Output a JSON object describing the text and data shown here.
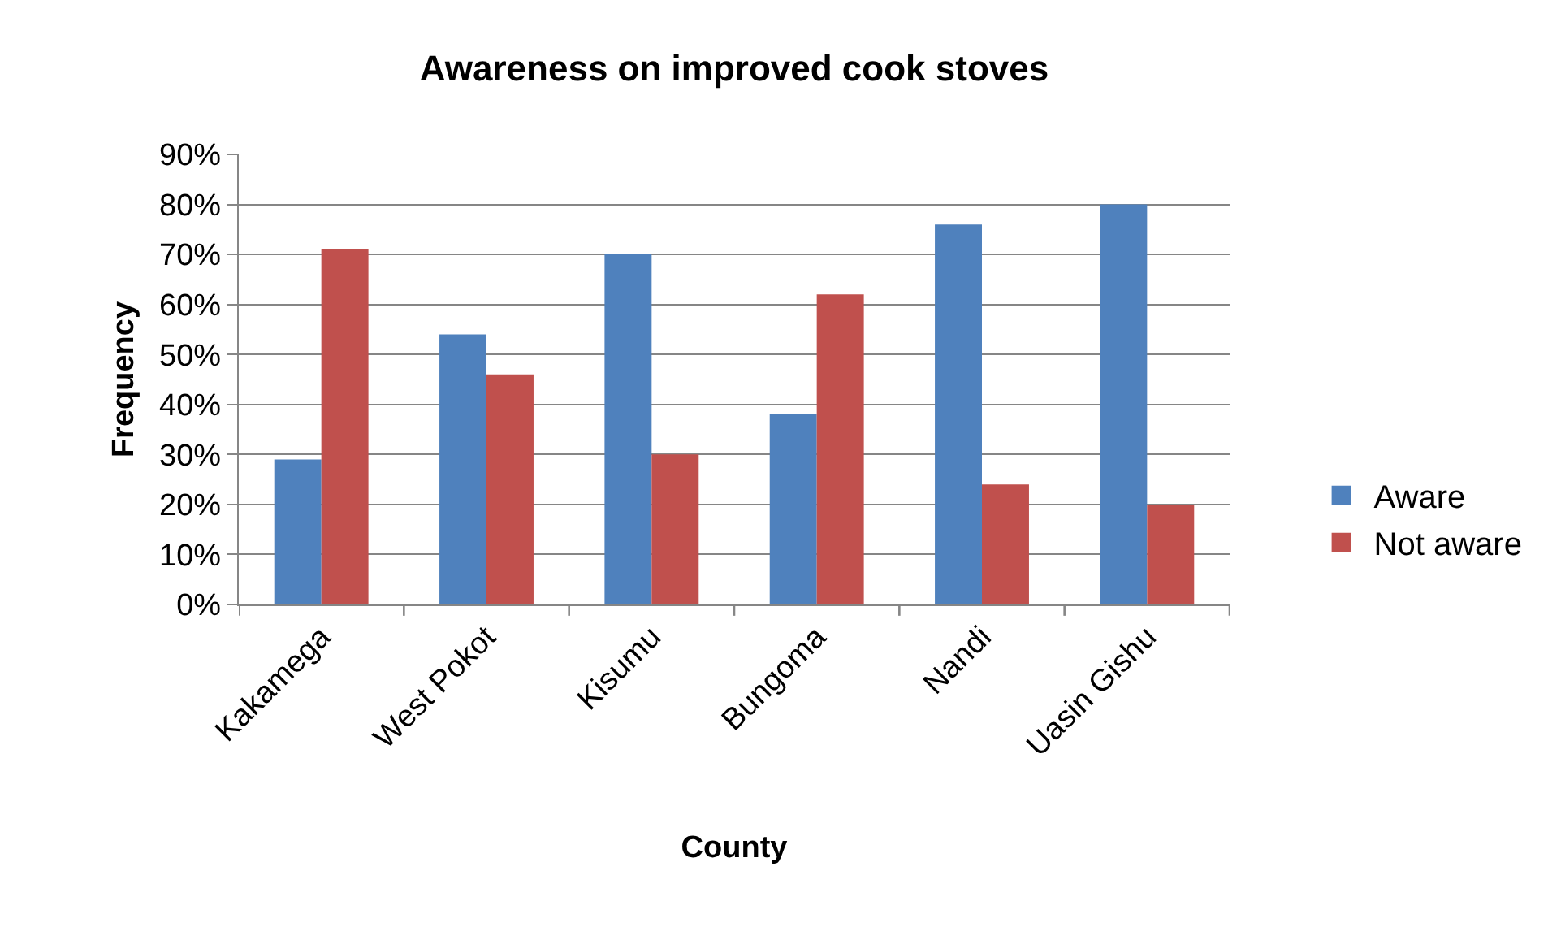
{
  "chart_data": {
    "type": "bar",
    "title": "Awareness on improved cook stoves",
    "xlabel": "County",
    "ylabel": "Frequency",
    "categories": [
      "Kakamega",
      "West Pokot",
      "Kisumu",
      "Bungoma",
      "Nandi",
      "Uasin Gishu"
    ],
    "series": [
      {
        "name": "Aware",
        "color": "#4f81bd",
        "values": [
          29,
          54,
          70,
          38,
          76,
          80
        ]
      },
      {
        "name": "Not aware",
        "color": "#c0504d",
        "values": [
          71,
          46,
          30,
          62,
          24,
          20
        ]
      }
    ],
    "ylim": [
      0,
      90
    ],
    "yticks": [
      {
        "value": 0,
        "label": "0%"
      },
      {
        "value": 10,
        "label": "10%"
      },
      {
        "value": 20,
        "label": "20%"
      },
      {
        "value": 30,
        "label": "30%"
      },
      {
        "value": 40,
        "label": "40%"
      },
      {
        "value": 50,
        "label": "50%"
      },
      {
        "value": 60,
        "label": "60%"
      },
      {
        "value": 70,
        "label": "70%"
      },
      {
        "value": 80,
        "label": "80%"
      },
      {
        "value": 90,
        "label": "90%"
      }
    ],
    "grid": "y",
    "legend": "right"
  }
}
